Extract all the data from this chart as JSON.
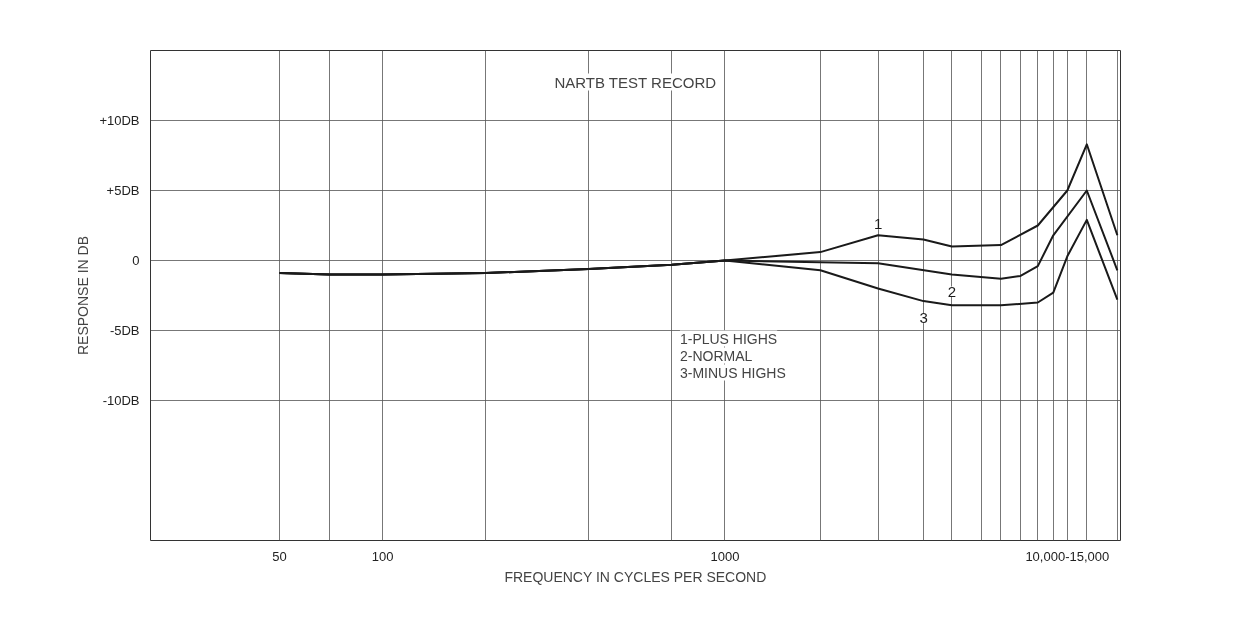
{
  "chart_data": {
    "type": "line",
    "title": "NARTB TEST RECORD",
    "xlabel": "FREQUENCY IN CYCLES PER SECOND",
    "ylabel": "RESPONSE IN DB",
    "annotations": [
      "1-PLUS HIGHS",
      "2-NORMAL",
      "3-MINUS HIGHS"
    ],
    "log": "x",
    "xlim": [
      21,
      14300
    ],
    "ylim": [
      -20,
      15
    ],
    "xticks": [
      50,
      {
        "value": 70,
        "label": null
      },
      100,
      {
        "value": 200,
        "label": null
      },
      {
        "value": 400,
        "label": null
      },
      {
        "value": 700,
        "label": null
      },
      1000,
      {
        "value": 1900,
        "label": null
      },
      {
        "value": 2800,
        "label": null
      },
      {
        "value": 3800,
        "label": null
      },
      {
        "value": 4600,
        "label": null
      },
      {
        "value": 5600,
        "label": null
      },
      {
        "value": 6400,
        "label": null
      },
      {
        "value": 7300,
        "label": null
      },
      {
        "value": 8200,
        "label": null
      },
      {
        "value": 9100,
        "label": null
      },
      {
        "value": 10000,
        "label": "10,000-15,000"
      },
      {
        "value": 11400,
        "label": null
      },
      {
        "value": 14000,
        "label": null
      }
    ],
    "yticks": [
      {
        "value": 10,
        "label": "+10DB"
      },
      {
        "value": 5,
        "label": "+5DB"
      },
      0,
      {
        "value": -5,
        "label": "-5DB"
      },
      {
        "value": -10,
        "label": "-10DB"
      }
    ],
    "grid": true,
    "marker": "none",
    "line_style": "solid",
    "series": [
      {
        "name": "1",
        "color": "#1a1a1a",
        "x": [
          50,
          70,
          100,
          200,
          400,
          700,
          1000,
          1900,
          2800,
          3800,
          4600,
          6400,
          8200,
          10000,
          11400,
          14000
        ],
        "values": [
          -0.9,
          -1,
          -1,
          -0.9,
          -0.6,
          -0.3,
          0,
          0.6,
          1.8,
          1.5,
          1.0,
          1.1,
          2.5,
          5,
          8.3,
          1.8
        ]
      },
      {
        "name": "2",
        "color": "#1a1a1a",
        "x": [
          50,
          70,
          100,
          200,
          400,
          700,
          1000,
          2800,
          4600,
          6400,
          7300,
          8200,
          9100,
          11400,
          14000
        ],
        "values": [
          -0.9,
          -1,
          -1,
          -0.9,
          -0.6,
          -0.3,
          0,
          -0.2,
          -1.0,
          -1.3,
          -1.1,
          -0.4,
          1.8,
          5.0,
          -0.7
        ]
      },
      {
        "name": "3",
        "color": "#1a1a1a",
        "x": [
          50,
          70,
          100,
          200,
          400,
          700,
          1000,
          1900,
          2800,
          3800,
          4600,
          6400,
          8200,
          9100,
          10000,
          11400,
          14000
        ],
        "values": [
          -0.9,
          -1,
          -1,
          -0.9,
          -0.6,
          -0.3,
          0,
          -0.7,
          -2.0,
          -2.9,
          -3.2,
          -3.2,
          -3.0,
          -2.3,
          0.3,
          2.9,
          -2.8
        ]
      }
    ]
  }
}
